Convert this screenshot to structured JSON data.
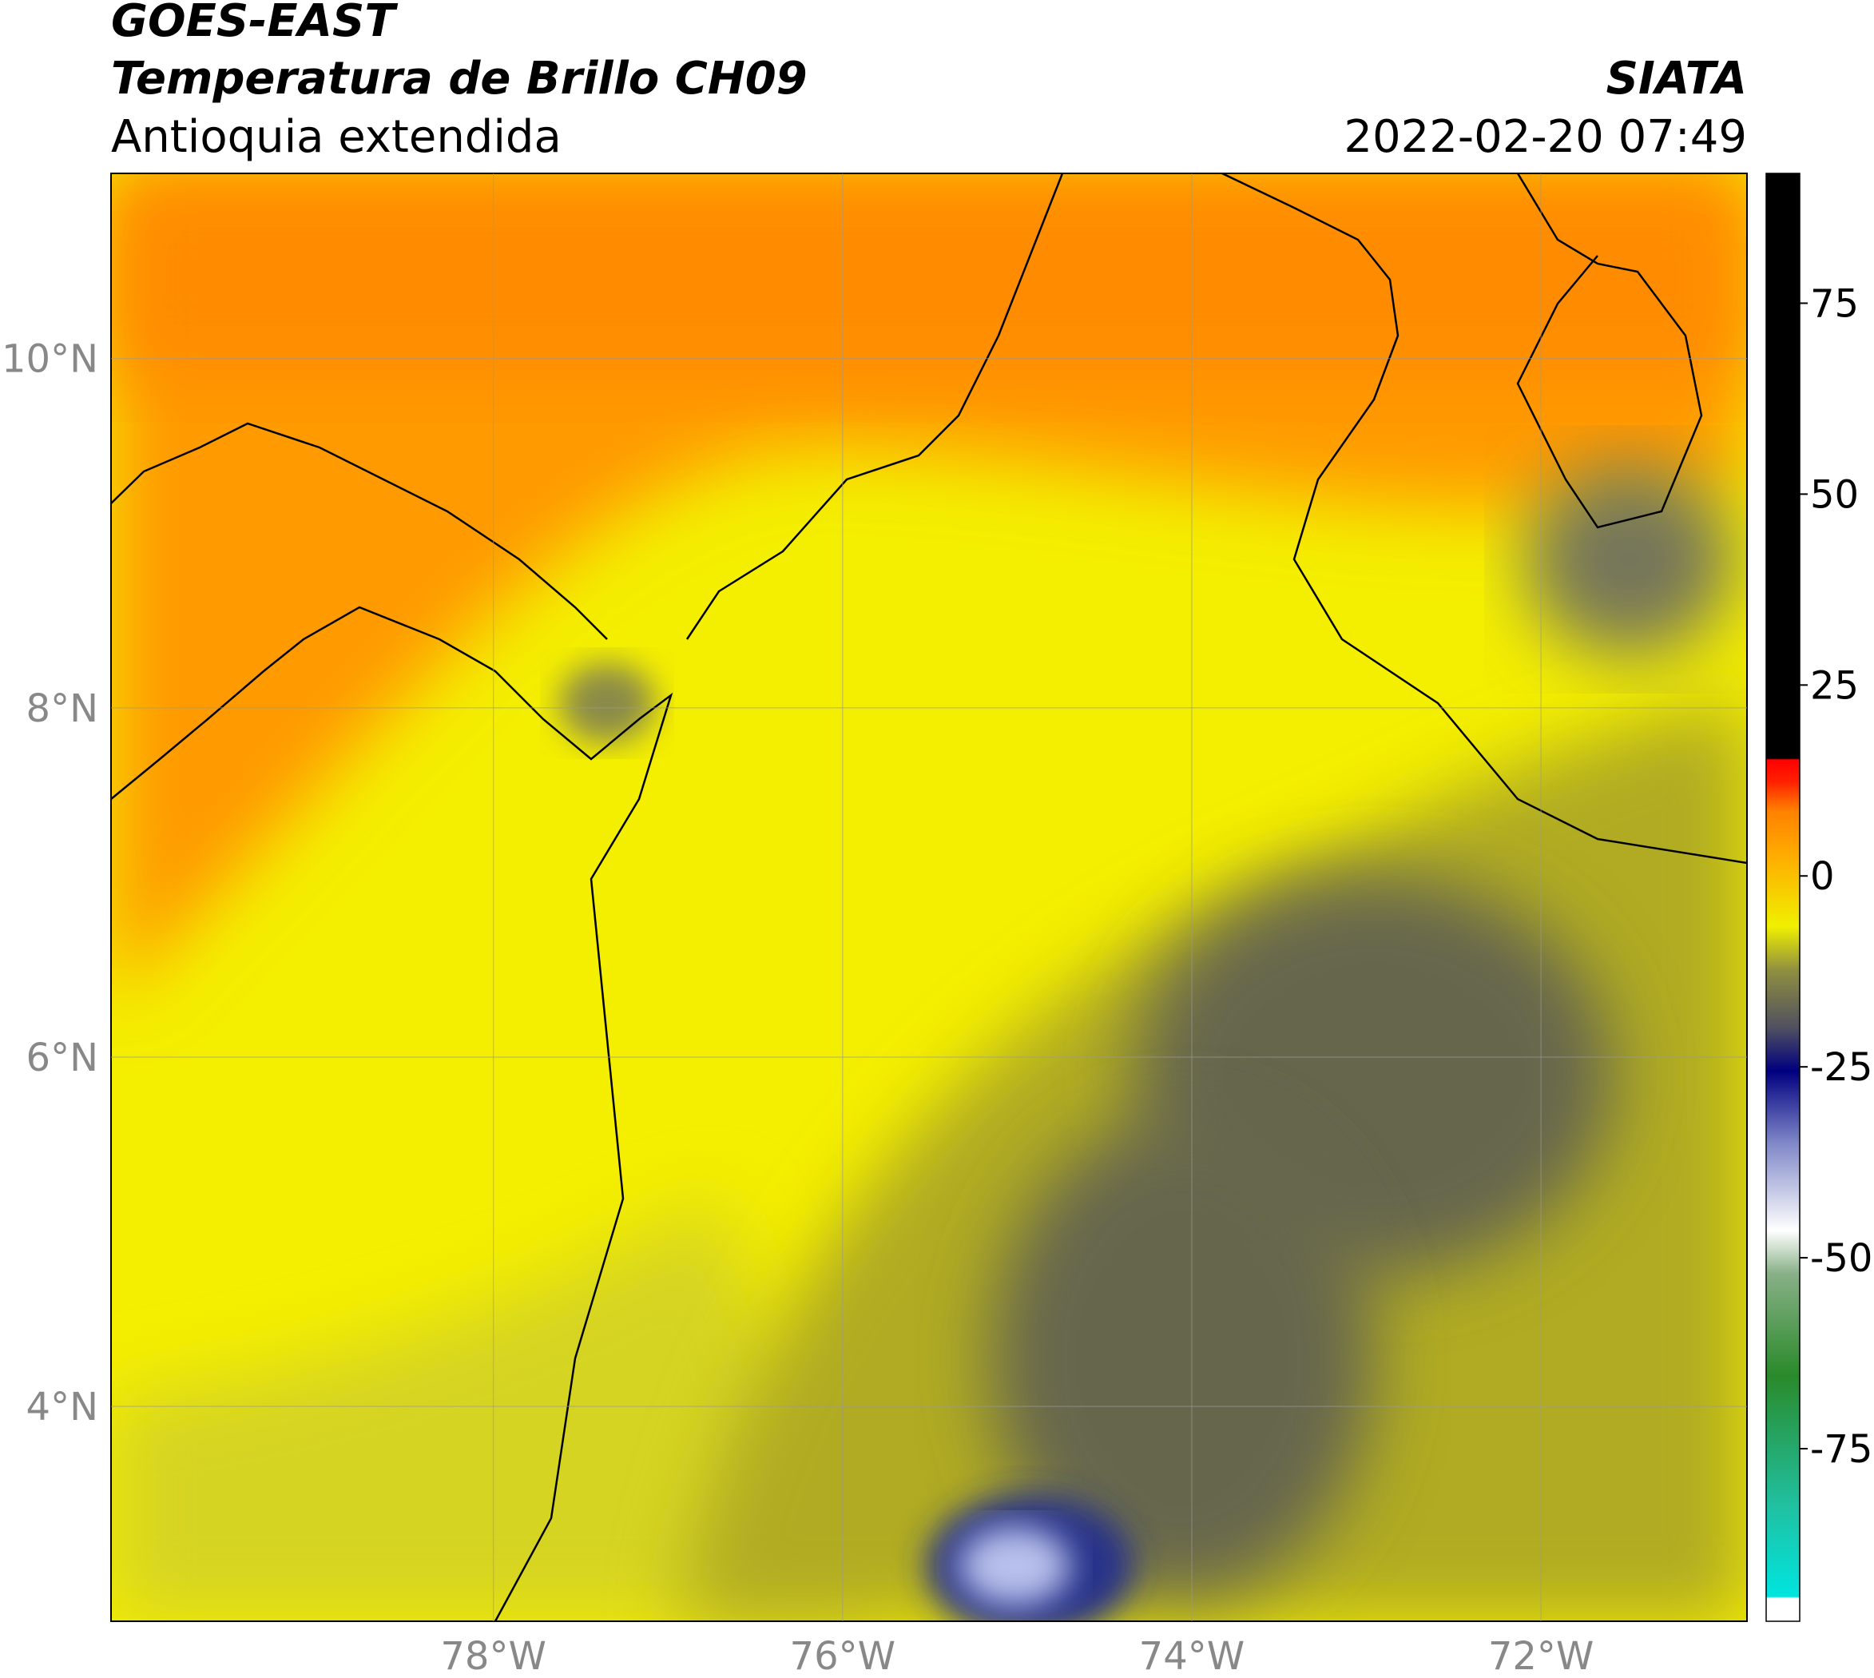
{
  "header": {
    "title": "GOES-EAST",
    "subtitle": "Temperatura de Brillo CH09",
    "region": "Antioquia extendida",
    "source": "SIATA",
    "datetime": "2022-02-20 07:49"
  },
  "map": {
    "xlim": [
      -80.19,
      -70.82
    ],
    "ylim": [
      2.77,
      11.06
    ],
    "xticks": [
      {
        "value": -78,
        "label": "78°W"
      },
      {
        "value": -76,
        "label": "76°W"
      },
      {
        "value": -74,
        "label": "74°W"
      },
      {
        "value": -72,
        "label": "72°W"
      }
    ],
    "yticks": [
      {
        "value": 10,
        "label": "10°N"
      },
      {
        "value": 8,
        "label": "8°N"
      },
      {
        "value": 6,
        "label": "6°N"
      },
      {
        "value": 4,
        "label": "4°N"
      }
    ],
    "grid": true
  },
  "colorbar": {
    "clim": [
      -97.6,
      92
    ],
    "ticks": [
      75,
      50,
      25,
      0,
      -25,
      -50,
      -75
    ]
  }
}
